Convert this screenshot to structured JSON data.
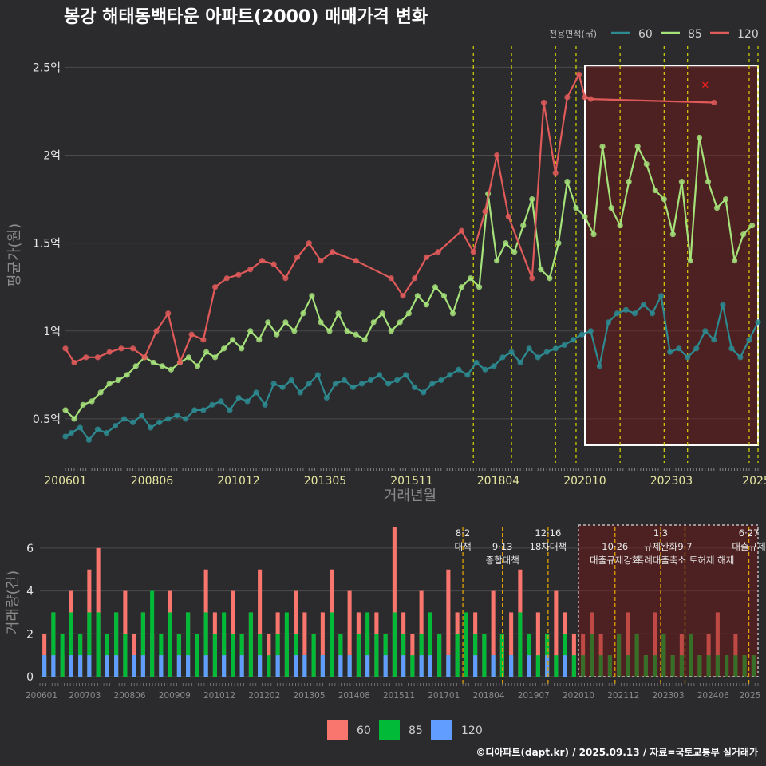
{
  "title": "봉강 해태동백타운 아파트(2000) 매매가격 변화",
  "legend": {
    "title": "전용면적(㎡)",
    "items": [
      {
        "name": "60",
        "line_color": "#2d8a90",
        "bar_color": "#f8766d"
      },
      {
        "name": "85",
        "line_color": "#a6e27a",
        "bar_color": "#00ba38"
      },
      {
        "name": "120",
        "line_color": "#e05a5a",
        "bar_color": "#619cff"
      }
    ]
  },
  "footer": "©디아파트(dapt.kr) / 2025.09.13 / 자료=국토교통부 실거래가",
  "chart_data": [
    {
      "type": "line",
      "xlabel": "거래년월",
      "ylabel": "평균가(원)",
      "x_range": [
        "2006-01",
        "2025-09"
      ],
      "ylim": [
        0.25,
        2.62
      ],
      "y_ticks": [
        {
          "value": 0.5,
          "label": "0.5억"
        },
        {
          "value": 1.0,
          "label": "1억"
        },
        {
          "value": 1.5,
          "label": "1.5억"
        },
        {
          "value": 2.0,
          "label": "2억"
        },
        {
          "value": 2.5,
          "label": "2.5억"
        }
      ],
      "x_ticks": [
        "200601",
        "200806",
        "201012",
        "201305",
        "201511",
        "201804",
        "202010",
        "202303",
        "2025"
      ],
      "grid": true,
      "legend_position": "top-right",
      "highlight_box": {
        "from": "2020-10",
        "to": "2025-09",
        "y_from": 0.35,
        "y_to": 2.51
      },
      "event_lines": [
        "2017-08",
        "2018-09",
        "2019-12",
        "2020-07",
        "2021-10",
        "2023-01",
        "2023-09",
        "2025-06",
        "2025-09"
      ],
      "marker": {
        "x": "2024-03",
        "y": 2.4,
        "symbol": "×"
      },
      "series": [
        {
          "name": "60",
          "x": [
            "2006-01",
            "2006-03",
            "2006-06",
            "2006-09",
            "2006-12",
            "2007-03",
            "2007-06",
            "2007-09",
            "2007-12",
            "2008-03",
            "2008-06",
            "2008-09",
            "2008-12",
            "2009-03",
            "2009-06",
            "2009-09",
            "2009-12",
            "2010-03",
            "2010-06",
            "2010-09",
            "2010-12",
            "2011-03",
            "2011-06",
            "2011-09",
            "2011-12",
            "2012-03",
            "2012-06",
            "2012-09",
            "2012-12",
            "2013-03",
            "2013-06",
            "2013-09",
            "2013-12",
            "2014-03",
            "2014-06",
            "2014-09",
            "2014-12",
            "2015-03",
            "2015-06",
            "2015-09",
            "2015-12",
            "2016-03",
            "2016-06",
            "2016-09",
            "2016-12",
            "2017-03",
            "2017-06",
            "2017-09",
            "2017-12",
            "2018-03",
            "2018-06",
            "2018-09",
            "2018-12",
            "2019-03",
            "2019-06",
            "2019-09",
            "2019-12",
            "2020-03",
            "2020-06",
            "2020-09",
            "2020-12",
            "2021-03",
            "2021-06",
            "2021-09",
            "2021-12",
            "2022-03",
            "2022-06",
            "2022-09",
            "2022-12",
            "2023-03",
            "2023-06",
            "2023-09",
            "2023-12",
            "2024-03",
            "2024-06",
            "2024-09",
            "2024-12",
            "2025-03",
            "2025-06",
            "2025-09"
          ],
          "y": [
            0.4,
            0.42,
            0.45,
            0.38,
            0.44,
            0.42,
            0.46,
            0.5,
            0.48,
            0.52,
            0.45,
            0.48,
            0.5,
            0.52,
            0.5,
            0.55,
            0.55,
            0.58,
            0.6,
            0.55,
            0.62,
            0.6,
            0.65,
            0.58,
            0.7,
            0.68,
            0.72,
            0.65,
            0.7,
            0.75,
            0.62,
            0.7,
            0.72,
            0.68,
            0.7,
            0.72,
            0.75,
            0.7,
            0.72,
            0.75,
            0.68,
            0.65,
            0.7,
            0.72,
            0.75,
            0.78,
            0.75,
            0.82,
            0.78,
            0.8,
            0.85,
            0.88,
            0.82,
            0.9,
            0.85,
            0.88,
            0.9,
            0.92,
            0.95,
            0.98,
            1.0,
            0.8,
            1.05,
            1.1,
            1.12,
            1.1,
            1.15,
            1.1,
            1.2,
            0.88,
            0.9,
            0.85,
            0.9,
            1.0,
            0.95,
            1.15,
            0.9,
            0.85,
            0.95,
            1.05
          ]
        },
        {
          "name": "85",
          "x": [
            "2006-01",
            "2006-04",
            "2006-07",
            "2006-10",
            "2007-01",
            "2007-04",
            "2007-07",
            "2007-10",
            "2008-01",
            "2008-04",
            "2008-07",
            "2008-10",
            "2009-01",
            "2009-04",
            "2009-07",
            "2009-10",
            "2010-01",
            "2010-04",
            "2010-07",
            "2010-10",
            "2011-01",
            "2011-04",
            "2011-07",
            "2011-10",
            "2012-01",
            "2012-04",
            "2012-07",
            "2012-10",
            "2013-01",
            "2013-04",
            "2013-07",
            "2013-10",
            "2014-01",
            "2014-04",
            "2014-07",
            "2014-10",
            "2015-01",
            "2015-04",
            "2015-07",
            "2015-10",
            "2016-01",
            "2016-04",
            "2016-07",
            "2016-10",
            "2017-01",
            "2017-04",
            "2017-07",
            "2017-10",
            "2018-01",
            "2018-04",
            "2018-07",
            "2018-10",
            "2019-01",
            "2019-04",
            "2019-07",
            "2019-10",
            "2020-01",
            "2020-04",
            "2020-07",
            "2020-10",
            "2021-01",
            "2021-04",
            "2021-07",
            "2021-10",
            "2022-01",
            "2022-04",
            "2022-07",
            "2022-10",
            "2023-01",
            "2023-04",
            "2023-07",
            "2023-10",
            "2024-01",
            "2024-04",
            "2024-07",
            "2024-10",
            "2025-01",
            "2025-04",
            "2025-07"
          ],
          "y": [
            0.55,
            0.5,
            0.58,
            0.6,
            0.65,
            0.7,
            0.72,
            0.75,
            0.8,
            0.85,
            0.82,
            0.8,
            0.78,
            0.82,
            0.85,
            0.8,
            0.88,
            0.85,
            0.9,
            0.95,
            0.9,
            1.0,
            0.95,
            1.05,
            0.98,
            1.05,
            1.0,
            1.1,
            1.2,
            1.05,
            1.0,
            1.1,
            1.0,
            0.98,
            0.95,
            1.05,
            1.1,
            1.0,
            1.05,
            1.1,
            1.2,
            1.15,
            1.25,
            1.2,
            1.1,
            1.25,
            1.3,
            1.25,
            1.78,
            1.4,
            1.5,
            1.45,
            1.6,
            1.75,
            1.35,
            1.3,
            1.5,
            1.85,
            1.7,
            1.65,
            1.55,
            2.05,
            1.7,
            1.6,
            1.85,
            2.05,
            1.95,
            1.8,
            1.75,
            1.55,
            1.85,
            1.4,
            2.1,
            1.85,
            1.7,
            1.75,
            1.4,
            1.55,
            1.6
          ]
        },
        {
          "name": "120",
          "x": [
            "2006-01",
            "2006-04",
            "2006-08",
            "2006-12",
            "2007-04",
            "2007-08",
            "2007-12",
            "2008-04",
            "2008-08",
            "2008-12",
            "2009-04",
            "2009-08",
            "2009-12",
            "2010-04",
            "2010-08",
            "2010-12",
            "2011-04",
            "2011-08",
            "2011-12",
            "2012-04",
            "2012-08",
            "2012-12",
            "2013-04",
            "2013-08",
            "2014-04",
            "2015-04",
            "2015-08",
            "2015-12",
            "2016-04",
            "2016-08",
            "2017-04",
            "2017-08",
            "2017-12",
            "2018-04",
            "2018-08",
            "2019-04",
            "2019-08",
            "2019-12",
            "2020-04",
            "2020-08",
            "2020-10",
            "2020-12",
            "2024-06"
          ],
          "y": [
            0.9,
            0.82,
            0.85,
            0.85,
            0.88,
            0.9,
            0.9,
            0.85,
            1.0,
            1.1,
            0.82,
            0.98,
            0.95,
            1.25,
            1.3,
            1.32,
            1.35,
            1.4,
            1.38,
            1.3,
            1.42,
            1.5,
            1.4,
            1.45,
            1.4,
            1.3,
            1.2,
            1.3,
            1.42,
            1.45,
            1.57,
            1.45,
            1.68,
            2.0,
            1.65,
            1.3,
            2.3,
            1.9,
            2.33,
            2.46,
            2.33,
            2.32,
            2.3
          ]
        }
      ]
    },
    {
      "type": "bar",
      "ylabel": "거래량(건)",
      "ylim": [
        0,
        7
      ],
      "y_ticks": [
        0,
        2,
        4,
        6
      ],
      "x_ticks": [
        "200601",
        "200703",
        "200806",
        "200909",
        "201012",
        "201202",
        "201305",
        "201408",
        "201511",
        "201701",
        "201804",
        "201907",
        "202010",
        "202112",
        "202303",
        "202406",
        "2025"
      ],
      "legend_position": "bottom",
      "highlight_box": {
        "from": "2020-10",
        "to": "2025-09"
      },
      "events": [
        {
          "x": "2017-08",
          "date": "8·2",
          "label": "대책"
        },
        {
          "x": "2018-09",
          "date": "9·13",
          "label": "종합대책"
        },
        {
          "x": "2019-12",
          "date": "12·16",
          "label": "18차대책"
        },
        {
          "x": "2021-10",
          "date": "10·26",
          "label": "대출규제강화"
        },
        {
          "x": "2023-01",
          "date": "1·3",
          "label": "규제완화"
        },
        {
          "x": "2023-09",
          "date": "9·7",
          "label": "특례대출축소 토허제 해제"
        },
        {
          "x": "2025-06",
          "date": "6·27",
          "label": "대출규제"
        }
      ],
      "series": [
        {
          "name": "60",
          "values": [
            2,
            3,
            1,
            4,
            2,
            5,
            6,
            2,
            3,
            4,
            2,
            3,
            2,
            1,
            4,
            2,
            3,
            2,
            5,
            3,
            2,
            4,
            2,
            3,
            5,
            2,
            3,
            2,
            4,
            3,
            2,
            3,
            5,
            2,
            4,
            3,
            2,
            3,
            2,
            7,
            3,
            2,
            4,
            3,
            2,
            5,
            3,
            2,
            3,
            2,
            4,
            2,
            3,
            5,
            2,
            3,
            2,
            4,
            3,
            2,
            2,
            3,
            2,
            1,
            2,
            3,
            2,
            1,
            3,
            2,
            1,
            2,
            2,
            1,
            2,
            3,
            1,
            2,
            1,
            1
          ]
        },
        {
          "name": "85",
          "values": [
            1,
            3,
            2,
            3,
            2,
            3,
            3,
            2,
            3,
            2,
            1,
            3,
            4,
            2,
            3,
            2,
            3,
            2,
            3,
            2,
            3,
            2,
            2,
            3,
            2,
            1,
            2,
            3,
            2,
            1,
            2,
            1,
            3,
            2,
            1,
            2,
            3,
            2,
            2,
            3,
            2,
            1,
            2,
            3,
            2,
            1,
            2,
            3,
            2,
            2,
            1,
            2,
            1,
            3,
            2,
            1,
            2,
            1,
            2,
            1,
            1,
            2,
            1,
            1,
            2,
            1,
            2,
            1,
            1,
            2,
            1,
            1,
            2,
            1,
            1,
            1,
            1,
            1,
            1,
            1
          ]
        },
        {
          "name": "120",
          "values": [
            1,
            1,
            0,
            1,
            1,
            1,
            0,
            1,
            1,
            0,
            1,
            1,
            0,
            1,
            0,
            1,
            1,
            0,
            1,
            0,
            1,
            0,
            1,
            0,
            1,
            0,
            1,
            0,
            1,
            1,
            0,
            1,
            0,
            1,
            1,
            0,
            1,
            0,
            1,
            0,
            1,
            0,
            1,
            1,
            0,
            1,
            0,
            0,
            1,
            0,
            1,
            0,
            1,
            0,
            1,
            0,
            1,
            0,
            1,
            0,
            0,
            0,
            0,
            0,
            0,
            0,
            0,
            0,
            0,
            0,
            0,
            0,
            0,
            0,
            0,
            0,
            0,
            0,
            0,
            0
          ]
        }
      ]
    }
  ]
}
